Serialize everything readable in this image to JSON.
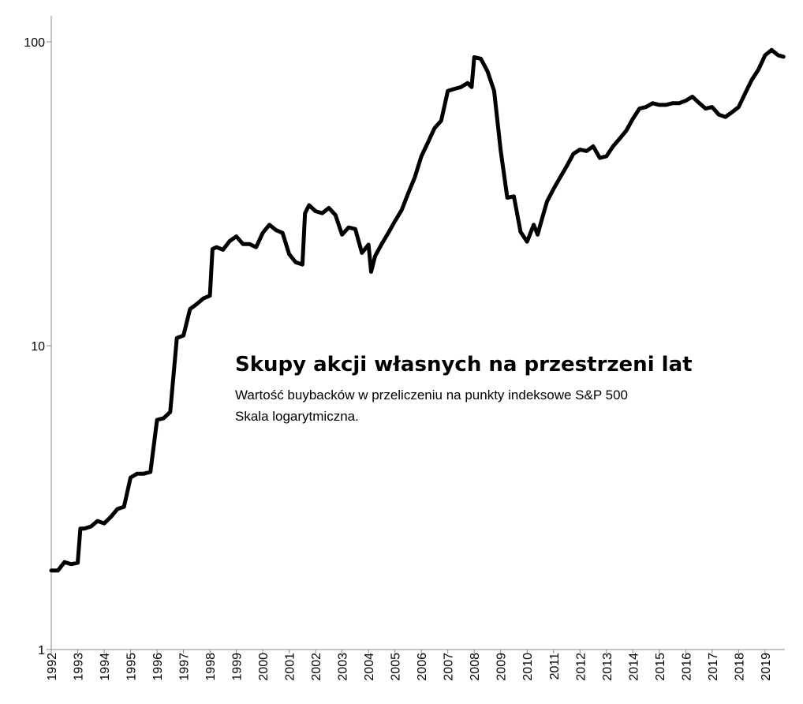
{
  "chart_data": {
    "type": "line",
    "title": "Skupy akcji własnych na przestrzeni lat",
    "subtitle": "Wartość buybacków w przeliczeniu na punkty indeksowe S&P 500",
    "note": "Skala logarytmiczna.",
    "yscale": "log",
    "color": "#000000",
    "xlim": [
      1992,
      2019.75
    ],
    "xticks": [
      1992,
      1993,
      1994,
      1995,
      1996,
      1997,
      1998,
      1999,
      2000,
      2001,
      2002,
      2003,
      2004,
      2005,
      2006,
      2007,
      2008,
      2009,
      2010,
      2011,
      2012,
      2013,
      2014,
      2015,
      2016,
      2017,
      2018,
      2019
    ],
    "ylim": [
      1,
      100
    ],
    "yticks": [
      1,
      10,
      100
    ],
    "x": [
      1992.0,
      1992.25,
      1992.5,
      1992.75,
      1993.0,
      1993.1,
      1993.25,
      1993.5,
      1993.75,
      1994.0,
      1994.25,
      1994.5,
      1994.75,
      1995.0,
      1995.25,
      1995.5,
      1995.75,
      1996.0,
      1996.25,
      1996.5,
      1996.75,
      1997.0,
      1997.25,
      1997.5,
      1997.75,
      1998.0,
      1998.1,
      1998.25,
      1998.5,
      1998.75,
      1999.0,
      1999.25,
      1999.5,
      1999.75,
      2000.0,
      2000.25,
      2000.5,
      2000.75,
      2001.0,
      2001.25,
      2001.5,
      2001.6,
      2001.75,
      2002.0,
      2002.25,
      2002.5,
      2002.75,
      2003.0,
      2003.25,
      2003.5,
      2003.75,
      2004.0,
      2004.1,
      2004.25,
      2004.5,
      2004.75,
      2005.0,
      2005.25,
      2005.5,
      2005.75,
      2006.0,
      2006.25,
      2006.5,
      2006.75,
      2007.0,
      2007.25,
      2007.5,
      2007.75,
      2007.9,
      2008.0,
      2008.25,
      2008.5,
      2008.75,
      2009.0,
      2009.25,
      2009.5,
      2009.75,
      2010.0,
      2010.25,
      2010.4,
      2010.5,
      2010.75,
      2011.0,
      2011.25,
      2011.5,
      2011.75,
      2012.0,
      2012.25,
      2012.5,
      2012.75,
      2013.0,
      2013.25,
      2013.5,
      2013.75,
      2014.0,
      2014.25,
      2014.5,
      2014.75,
      2015.0,
      2015.25,
      2015.5,
      2015.75,
      2016.0,
      2016.25,
      2016.5,
      2016.75,
      2017.0,
      2017.25,
      2017.5,
      2017.75,
      2018.0,
      2018.25,
      2018.5,
      2018.75,
      2019.0,
      2019.25,
      2019.5,
      2019.7
    ],
    "values": [
      1.82,
      1.82,
      1.94,
      1.91,
      1.93,
      2.5,
      2.5,
      2.54,
      2.65,
      2.6,
      2.73,
      2.9,
      2.95,
      3.68,
      3.79,
      3.79,
      3.84,
      5.7,
      5.77,
      6.05,
      10.6,
      10.8,
      13.2,
      13.7,
      14.3,
      14.6,
      20.8,
      21.1,
      20.7,
      22.1,
      22.9,
      21.6,
      21.6,
      21.1,
      23.5,
      25.0,
      24.0,
      23.5,
      20.0,
      18.8,
      18.5,
      27.3,
      29.0,
      27.7,
      27.3,
      28.4,
      26.9,
      23.2,
      24.5,
      24.2,
      20.2,
      21.5,
      17.5,
      19.7,
      21.6,
      23.5,
      25.7,
      27.9,
      31.7,
      35.8,
      42.0,
      46.7,
      52.0,
      55.0,
      68.9,
      70.0,
      71.0,
      73.2,
      71.0,
      89,
      88,
      80,
      69,
      44,
      30.7,
      31,
      23.7,
      22,
      25,
      23.2,
      25,
      29.8,
      32.8,
      35.8,
      39,
      42.8,
      44.2,
      43.7,
      45.3,
      41.5,
      42,
      45.3,
      48,
      51,
      55.8,
      60.3,
      61,
      62.8,
      62,
      62,
      62.8,
      62.8,
      64,
      66,
      63,
      60.3,
      61,
      57.6,
      56.6,
      58.7,
      61,
      67.7,
      75,
      81,
      90.3,
      94,
      90.3,
      89.3
    ]
  }
}
